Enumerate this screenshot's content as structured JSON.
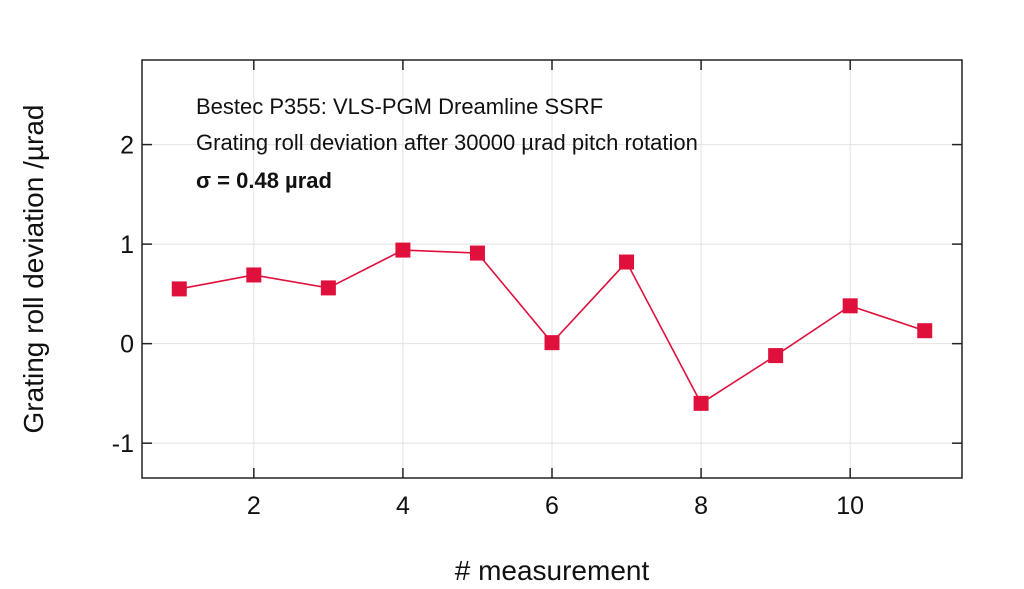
{
  "chart_data": {
    "type": "line",
    "xlabel": "# measurement",
    "ylabel": "Grating roll deviation /µrad",
    "xlim": [
      0.5,
      11.5
    ],
    "ylim": [
      -1.35,
      2.85
    ],
    "xticks": [
      2,
      4,
      6,
      8,
      10
    ],
    "yticks": [
      -1,
      0,
      1,
      2
    ],
    "grid": true,
    "annotations": [
      "Bestec P355: VLS-PGM Dreamline SSRF",
      "Grating roll deviation after 30000 µrad pitch rotation",
      "σ  = 0.48 µrad"
    ],
    "series": [
      {
        "x": [
          1,
          2,
          3,
          4,
          5,
          6,
          7,
          8,
          9,
          10,
          11
        ],
        "values": [
          0.55,
          0.69,
          0.56,
          0.94,
          0.91,
          0.01,
          0.82,
          -0.6,
          -0.12,
          0.38,
          0.13
        ],
        "color": "#e0103c",
        "marker": "square"
      }
    ]
  }
}
